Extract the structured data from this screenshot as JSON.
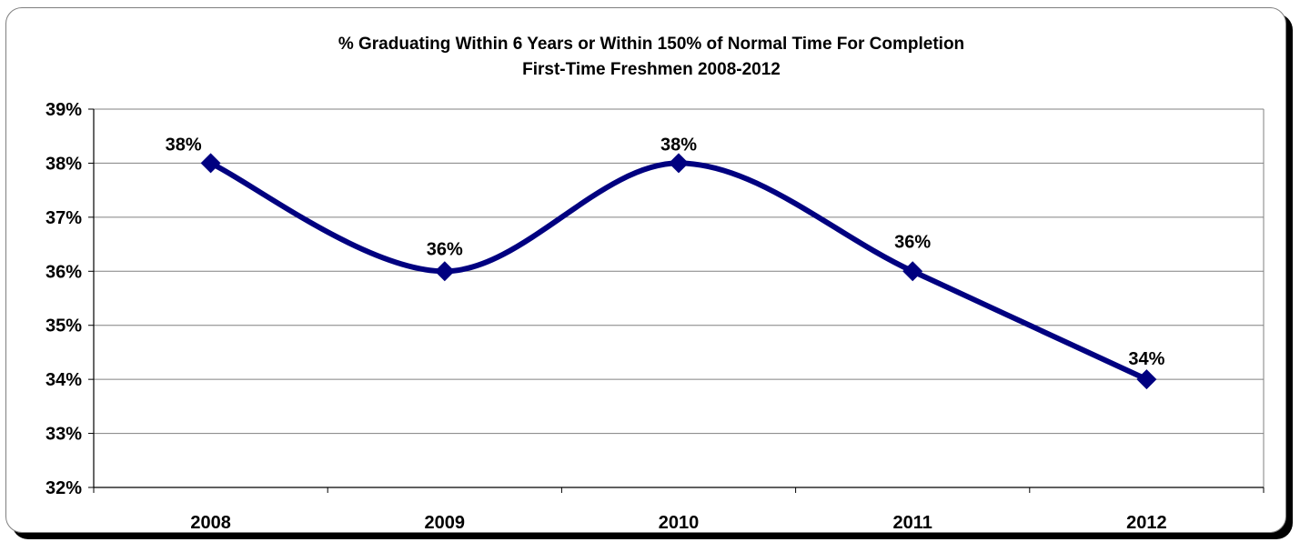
{
  "chart_data": {
    "type": "line",
    "title": "% Graduating Within 6 Years or Within 150% of Normal Time For Completion",
    "subtitle": "First-Time Freshmen 2008-2012",
    "categories": [
      "2008",
      "2009",
      "2010",
      "2011",
      "2012"
    ],
    "series": [
      {
        "values": [
          38,
          36,
          38,
          36,
          34
        ],
        "labels": [
          "38%",
          "36%",
          "38%",
          "36%",
          "34%"
        ]
      }
    ],
    "ylim": [
      32,
      39
    ],
    "yticks": [
      32,
      33,
      34,
      35,
      36,
      37,
      38,
      39
    ],
    "ytick_labels": [
      "32%",
      "33%",
      "34%",
      "35%",
      "36%",
      "37%",
      "38%",
      "39%"
    ],
    "xlabel": "",
    "ylabel": "",
    "grid": true,
    "legend": "none",
    "smooth": true,
    "marker": "diamond",
    "colors": {
      "line": "#000080",
      "grid": "#808080",
      "frame_shadow": "#000000"
    }
  }
}
